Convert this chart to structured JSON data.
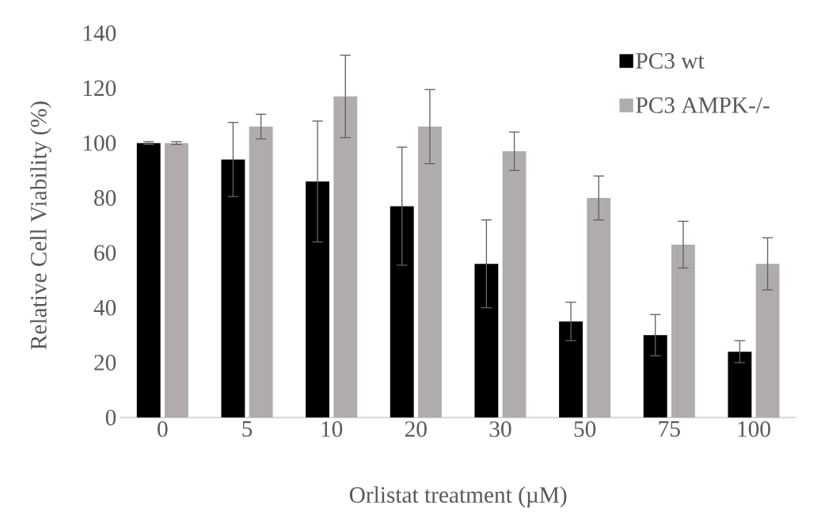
{
  "chart_data": {
    "type": "bar",
    "xlabel": "Orlistat treatment (µM)",
    "ylabel": "Relative Cell Viability (%)",
    "categories": [
      "0",
      "5",
      "10",
      "20",
      "30",
      "50",
      "75",
      "100"
    ],
    "series": [
      {
        "name": "PC3 wt",
        "color": "#000000",
        "values": [
          100,
          94,
          86,
          77,
          56,
          35,
          30,
          24
        ],
        "errors": [
          0.5,
          13.5,
          22,
          21.5,
          16,
          7,
          7.5,
          4
        ]
      },
      {
        "name": "PC3 AMPK-/-",
        "color": "#afacab",
        "values": [
          100,
          106,
          117,
          106,
          97,
          80,
          63,
          56
        ],
        "errors": [
          0.5,
          4.5,
          15,
          13.5,
          7,
          8,
          8.5,
          9.5
        ]
      }
    ],
    "ylim": [
      0,
      140
    ],
    "yticks": [
      0,
      20,
      40,
      60,
      80,
      100,
      120,
      140
    ],
    "grid": false,
    "legend": "top right"
  }
}
